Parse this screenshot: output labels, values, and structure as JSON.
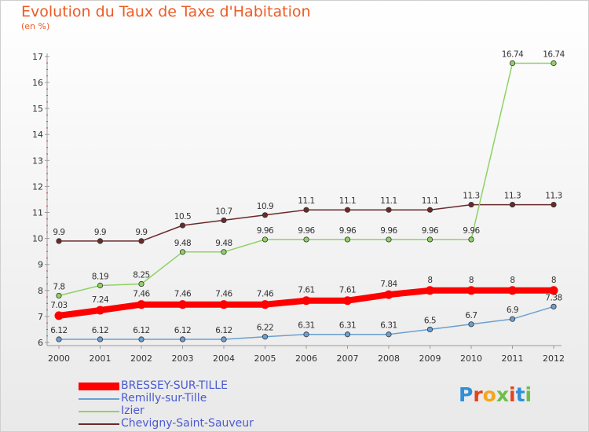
{
  "title": "Evolution du Taux de Taxe d'Habitation",
  "subtitle": "(en %)",
  "logo": {
    "text": "Proxiti",
    "letters": [
      "P",
      "r",
      "o",
      "x",
      "i",
      "t",
      "i"
    ]
  },
  "chart_data": {
    "type": "line",
    "title": "Evolution du Taux de Taxe d'Habitation",
    "ylabel": "(en %)",
    "xlabel": "",
    "ylim": [
      6,
      17
    ],
    "yticks": [
      "6",
      "7",
      "8",
      "9",
      "10",
      "11",
      "12",
      "13",
      "14",
      "15",
      "16",
      "17"
    ],
    "categories": [
      "2000",
      "2001",
      "2002",
      "2003",
      "2004",
      "2005",
      "2006",
      "2007",
      "2008",
      "2009",
      "2010",
      "2011",
      "2012"
    ],
    "grid": false,
    "legend_position": "bottom-left",
    "series": [
      {
        "name": "BRESSEY-SUR-TILLE",
        "color": "#ff0000",
        "values": [
          7.03,
          7.24,
          7.46,
          7.46,
          7.46,
          7.46,
          7.61,
          7.61,
          7.84,
          8,
          8,
          8,
          8
        ],
        "labels": [
          "7.03",
          "7.24",
          "7.46",
          "7.46",
          "7.46",
          "7.46",
          "7.61",
          "7.61",
          "7.84",
          "8",
          "8",
          "8",
          "8"
        ]
      },
      {
        "name": "Remilly-sur-Tille",
        "color": "#6b9fd1",
        "values": [
          6.12,
          6.12,
          6.12,
          6.12,
          6.12,
          6.22,
          6.31,
          6.31,
          6.31,
          6.5,
          6.7,
          6.9,
          7.38
        ],
        "labels": [
          "6.12",
          "6.12",
          "6.12",
          "6.12",
          "6.12",
          "6.22",
          "6.31",
          "6.31",
          "6.31",
          "6.5",
          "6.7",
          "6.9",
          "7.38"
        ]
      },
      {
        "name": "Izier",
        "color": "#8fd264",
        "values": [
          7.8,
          8.19,
          8.25,
          9.48,
          9.48,
          9.96,
          9.96,
          9.96,
          9.96,
          9.96,
          9.96,
          16.74,
          16.74
        ],
        "labels": [
          "7.8",
          "8.19",
          "8.25",
          "9.48",
          "9.48",
          "9.96",
          "9.96",
          "9.96",
          "9.96",
          "9.96",
          "9.96",
          "16.74",
          "16.74"
        ]
      },
      {
        "name": "Chevigny-Saint-Sauveur",
        "color": "#6b2a2a",
        "values": [
          9.9,
          9.9,
          9.9,
          10.5,
          10.7,
          10.9,
          11.1,
          11.1,
          11.1,
          11.1,
          11.3,
          11.3,
          11.3
        ],
        "labels": [
          "9.9",
          "9.9",
          "9.9",
          "10.5",
          "10.7",
          "10.9",
          "11.1",
          "11.1",
          "11.1",
          "11.1",
          "11.3",
          "11.3",
          "11.3"
        ]
      }
    ]
  }
}
